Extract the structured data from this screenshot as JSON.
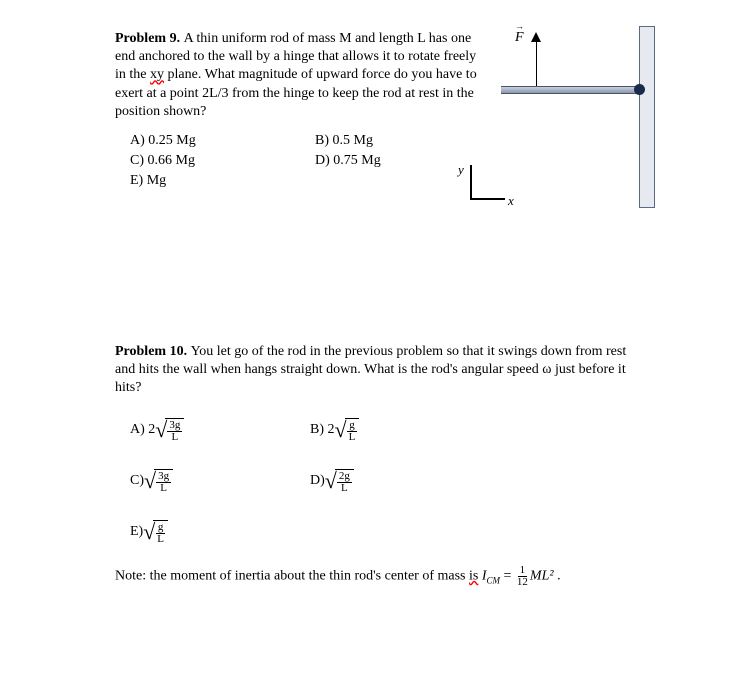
{
  "problem9": {
    "heading": "Problem 9. ",
    "text_before_squiggle": "A thin uniform rod of mass M and length L has one end anchored to the wall by a hinge that allows it to rotate freely in the ",
    "squiggle": "xy",
    "text_after_squiggle": " plane. What magnitude of upward force do you have to exert at a point 2L/3 from the hinge to keep the rod at rest in the position shown?",
    "options": {
      "A": "A) 0.25 Mg",
      "B": "B) 0.5 Mg",
      "C": "C) 0.66 Mg",
      "D": "D) 0.75 Mg",
      "E": "E) Mg"
    }
  },
  "problem10": {
    "heading": "Problem 10. ",
    "text": "You let go of the rod in the previous problem so that it swings down from rest and hits the wall when hangs straight down. What is the rod's angular speed ω just before it hits?",
    "options": {
      "A": {
        "label": "A) 2",
        "num": "3g",
        "den": "L"
      },
      "B": {
        "label": "B) 2",
        "num": "g",
        "den": "L"
      },
      "C": {
        "label": "C) ",
        "num": "3g",
        "den": "L"
      },
      "D": {
        "label": "D) ",
        "num": "2g",
        "den": "L"
      },
      "E": {
        "label": "E) ",
        "num": "g",
        "den": "L"
      }
    },
    "note_before": "Note: the moment of inertia about the thin rod's center of mass ",
    "note_is": "is",
    "note_mid": " I",
    "note_sub": "CM",
    "note_eq": " = ",
    "note_frac_num": "1",
    "note_frac_den": "12",
    "note_after": "ML²",
    "note_period": " ."
  },
  "diagram": {
    "force_label": "F",
    "y_label": "y",
    "x_label": "x"
  }
}
